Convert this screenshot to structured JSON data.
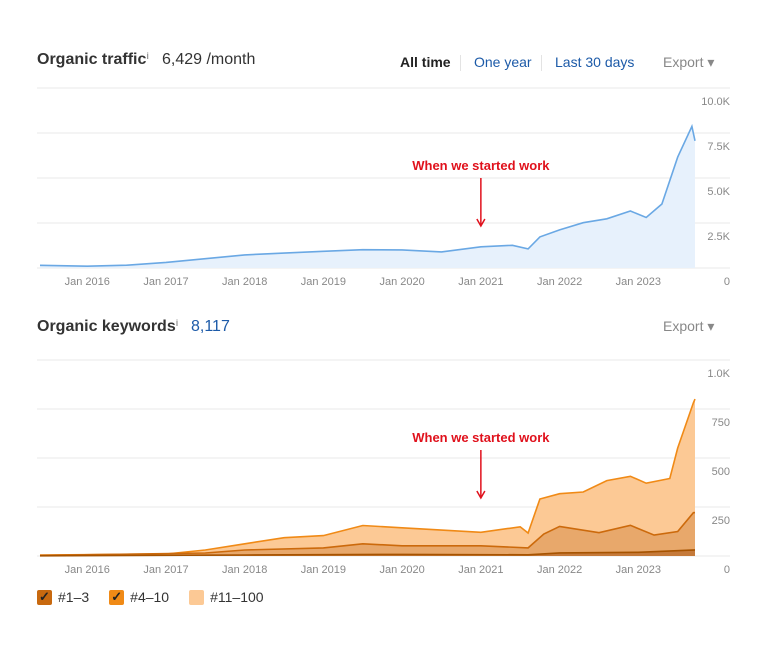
{
  "traffic": {
    "title": "Organic traffic",
    "info": "i",
    "value": "6,429 /month",
    "tabs": [
      "All time",
      "One year",
      "Last 30 days"
    ],
    "export": "Export ▾"
  },
  "keywords": {
    "title": "Organic keywords",
    "info": "i",
    "value": "8,117",
    "export": "Export ▾"
  },
  "colors": {
    "traffic": "#6aa8e4",
    "traffic_fill": "#e7f1fc",
    "kw_top": "#f08a16",
    "kw_fill": "#fcc995",
    "kw_mid": "#cc6a0c",
    "kw_mid_fill": "#e8a86b",
    "kw_low": "#a65300",
    "annotation": "#e0111c"
  },
  "chart_data": [
    {
      "type": "area",
      "title": "Organic traffic",
      "ylim": [
        0,
        10000
      ],
      "yticks": [
        "10.0K",
        "7.5K",
        "5.0K",
        "2.5K",
        "0"
      ],
      "ytick_values": [
        10000,
        7500,
        5000,
        2500,
        0
      ],
      "xticks": [
        "Jan 2016",
        "Jan 2017",
        "Jan 2018",
        "Jan 2019",
        "Jan 2020",
        "Jan 2021",
        "Jan 2022",
        "Jan 2023"
      ],
      "xtick_values": [
        2016,
        2017,
        2018,
        2019,
        2020,
        2021,
        2022,
        2023
      ],
      "xlim": [
        2015.4,
        2023.72
      ],
      "annotation": {
        "text": "When we started work",
        "x": 2021.0
      },
      "series": [
        {
          "name": "Organic traffic",
          "x": [
            2015.4,
            2016,
            2016.5,
            2017,
            2017.5,
            2018,
            2018.5,
            2019,
            2019.5,
            2020,
            2020.5,
            2021,
            2021.4,
            2021.6,
            2021.75,
            2022,
            2022.3,
            2022.6,
            2022.9,
            2023.1,
            2023.3,
            2023.5,
            2023.68,
            2023.72
          ],
          "values": [
            150,
            100,
            150,
            300,
            500,
            700,
            800,
            900,
            1000,
            1000,
            900,
            1200,
            1300,
            1100,
            1800,
            2200,
            2600,
            2800,
            3200,
            2800,
            3500,
            6000,
            7600,
            6800
          ]
        }
      ]
    },
    {
      "type": "area",
      "title": "Organic keywords",
      "ylim": [
        0,
        1000
      ],
      "yticks": [
        "1.0K",
        "750",
        "500",
        "250",
        "0"
      ],
      "ytick_values": [
        1000,
        750,
        500,
        250,
        0
      ],
      "xticks": [
        "Jan 2016",
        "Jan 2017",
        "Jan 2018",
        "Jan 2019",
        "Jan 2020",
        "Jan 2021",
        "Jan 2022",
        "Jan 2023"
      ],
      "xtick_values": [
        2016,
        2017,
        2018,
        2019,
        2020,
        2021,
        2022,
        2023
      ],
      "xlim": [
        2015.4,
        2023.72
      ],
      "annotation": {
        "text": "When we started work",
        "x": 2021.0
      },
      "legend": [
        "#1–3",
        "#4–10",
        "#11–100"
      ],
      "series": [
        {
          "name": "#11–100",
          "x": [
            2015.4,
            2017,
            2017.5,
            2018,
            2018.5,
            2019,
            2019.5,
            2020,
            2020.5,
            2021,
            2021.5,
            2021.6,
            2021.75,
            2022,
            2022.3,
            2022.6,
            2022.9,
            2023.1,
            2023.4,
            2023.5,
            2023.7,
            2023.72
          ],
          "values": [
            5,
            10,
            30,
            60,
            90,
            100,
            150,
            140,
            130,
            120,
            150,
            120,
            300,
            330,
            340,
            400,
            420,
            380,
            400,
            550,
            770,
            780
          ]
        },
        {
          "name": "#4–10",
          "x": [
            2015.4,
            2017.5,
            2018,
            2019,
            2019.5,
            2020,
            2021,
            2021.6,
            2021.8,
            2022,
            2022.5,
            2022.9,
            2023.2,
            2023.5,
            2023.7,
            2023.72
          ],
          "values": [
            3,
            15,
            30,
            40,
            60,
            50,
            50,
            40,
            110,
            150,
            120,
            160,
            110,
            130,
            230,
            230
          ]
        },
        {
          "name": "#1–3",
          "x": [
            2015.4,
            2018,
            2020,
            2021.6,
            2022,
            2023,
            2023.72
          ],
          "values": [
            1,
            5,
            8,
            6,
            15,
            18,
            30
          ]
        }
      ]
    }
  ]
}
